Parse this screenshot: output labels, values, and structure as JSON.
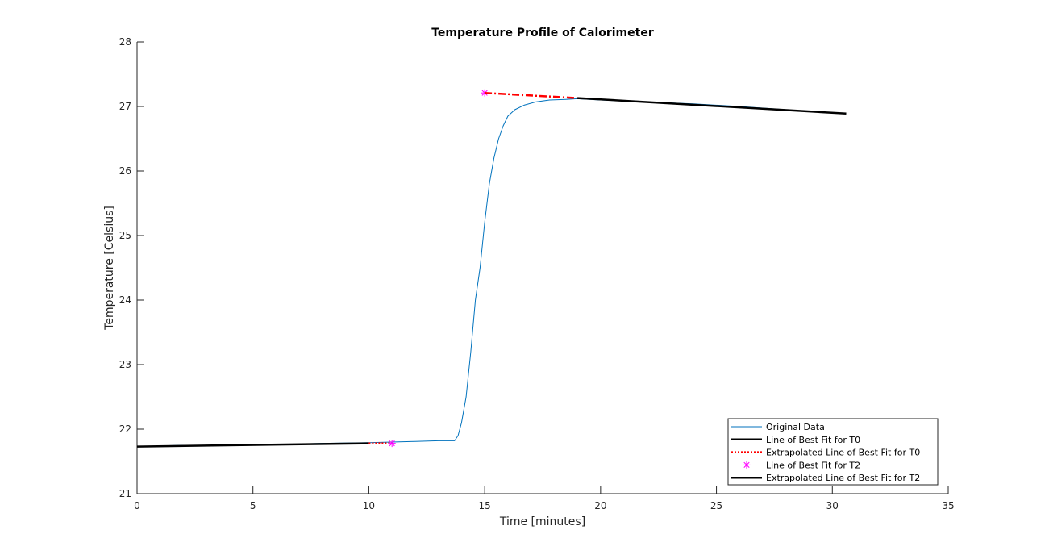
{
  "chart_data": {
    "type": "line",
    "title": "Temperature Profile of Calorimeter",
    "xlabel": "Time [minutes]",
    "ylabel": "Temperature [Celsius]",
    "xlim": [
      0,
      35
    ],
    "ylim": [
      21,
      28
    ],
    "xticks": [
      0,
      5,
      10,
      15,
      20,
      25,
      30,
      35
    ],
    "yticks": [
      21,
      22,
      23,
      24,
      25,
      26,
      27,
      28
    ],
    "xtick_labels": [
      "0",
      "5",
      "10",
      "15",
      "20",
      "25",
      "30",
      "35"
    ],
    "ytick_labels": [
      "21",
      "22",
      "23",
      "24",
      "25",
      "26",
      "27",
      "28"
    ],
    "grid": false,
    "legend_position": "bottom-right",
    "series": [
      {
        "name": "Original Data",
        "style": "solid",
        "color": "#0072BD",
        "points": [
          [
            0,
            21.73
          ],
          [
            2,
            21.75
          ],
          [
            4,
            21.75
          ],
          [
            6,
            21.76
          ],
          [
            8,
            21.78
          ],
          [
            10,
            21.79
          ],
          [
            11,
            21.8
          ],
          [
            12,
            21.81
          ],
          [
            13,
            21.82
          ],
          [
            13.7,
            21.82
          ],
          [
            13.85,
            21.9
          ],
          [
            14.0,
            22.1
          ],
          [
            14.2,
            22.5
          ],
          [
            14.4,
            23.2
          ],
          [
            14.6,
            24.0
          ],
          [
            14.8,
            24.5
          ],
          [
            15.0,
            25.2
          ],
          [
            15.2,
            25.8
          ],
          [
            15.4,
            26.2
          ],
          [
            15.6,
            26.5
          ],
          [
            15.8,
            26.7
          ],
          [
            16.0,
            26.85
          ],
          [
            16.3,
            26.95
          ],
          [
            16.7,
            27.02
          ],
          [
            17.2,
            27.07
          ],
          [
            17.8,
            27.1
          ],
          [
            18.5,
            27.11
          ],
          [
            19,
            27.12
          ],
          [
            20,
            27.1
          ],
          [
            22,
            27.07
          ],
          [
            24,
            27.04
          ],
          [
            26,
            27.0
          ],
          [
            28,
            26.95
          ],
          [
            30,
            26.9
          ],
          [
            30.6,
            26.89
          ]
        ]
      },
      {
        "name": "Line of Best Fit for T0",
        "style": "solid",
        "color": "#000000",
        "points": [
          [
            0,
            21.73
          ],
          [
            10,
            21.78
          ]
        ]
      },
      {
        "name": "Extrapolated Line of Best Fit for T0",
        "style": "dotted",
        "color": "#FF0000",
        "points": [
          [
            10,
            21.78
          ],
          [
            11,
            21.78
          ]
        ]
      },
      {
        "name": "Line of Best Fit for T2",
        "style": "marker",
        "marker": "asterisk",
        "color": "#FF00FF",
        "points": [
          [
            11,
            21.78
          ],
          [
            15,
            27.21
          ]
        ]
      },
      {
        "name": "Extrapolated Line of Best Fit for T2",
        "style": "solid",
        "color": "#000000",
        "points": [
          [
            19,
            27.13
          ],
          [
            30.6,
            26.89
          ]
        ]
      },
      {
        "name": "",
        "style": "dashdot",
        "color": "#FF0000",
        "points": [
          [
            15,
            27.21
          ],
          [
            19,
            27.13
          ]
        ]
      }
    ]
  }
}
